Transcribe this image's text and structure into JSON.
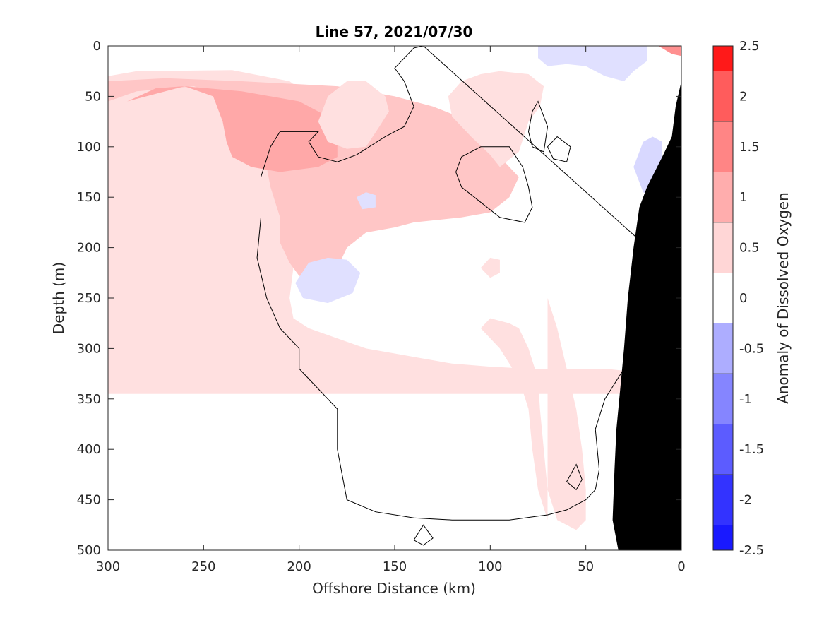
{
  "chart_data": {
    "type": "heatmap",
    "title": "Line 57, 2021/07/30",
    "xlabel": "Offshore Distance (km)",
    "ylabel": "Depth (m)",
    "xlim": [
      300,
      0
    ],
    "ylim": [
      0,
      500
    ],
    "x_reversed": true,
    "y_reversed": true,
    "x_ticks": [
      300,
      250,
      200,
      150,
      100,
      50,
      0
    ],
    "y_ticks": [
      0,
      50,
      100,
      150,
      200,
      250,
      300,
      350,
      400,
      450,
      500
    ],
    "colorbar": {
      "label": "Anomaly of Dissolved Oxygen",
      "range": [
        -2.5,
        2.5
      ],
      "ticks": [
        2.5,
        2,
        1.5,
        1,
        0.5,
        0,
        -0.5,
        -1,
        -1.5,
        -2,
        -2.5
      ],
      "levels": [
        {
          "from": -2.5,
          "to": -2.25,
          "color": "#1919ff"
        },
        {
          "from": -2.25,
          "to": -1.75,
          "color": "#3333ff"
        },
        {
          "from": -1.75,
          "to": -1.25,
          "color": "#5c5cff"
        },
        {
          "from": -1.25,
          "to": -0.75,
          "color": "#8585ff"
        },
        {
          "from": -0.75,
          "to": -0.25,
          "color": "#adadff"
        },
        {
          "from": -0.25,
          "to": 0.25,
          "color": "#ffffff"
        },
        {
          "from": 0.25,
          "to": 0.75,
          "color": "#ffd6d6"
        },
        {
          "from": 0.75,
          "to": 1.25,
          "color": "#ffadad"
        },
        {
          "from": 1.25,
          "to": 1.75,
          "color": "#ff8585"
        },
        {
          "from": 1.75,
          "to": 2.25,
          "color": "#ff5c5c"
        },
        {
          "from": 2.25,
          "to": 2.5,
          "color": "#ff1919"
        }
      ]
    },
    "grid": false,
    "regions": [
      {
        "name": "positive-anomaly-offshore",
        "level": 0.5,
        "color": "#ffe0e0",
        "points": [
          [
            300,
            30
          ],
          [
            285,
            25
          ],
          [
            235,
            24
          ],
          [
            205,
            35
          ],
          [
            198,
            45
          ],
          [
            205,
            58
          ],
          [
            202,
            80
          ],
          [
            195,
            100
          ],
          [
            185,
            120
          ],
          [
            180,
            140
          ],
          [
            185,
            170
          ],
          [
            195,
            200
          ],
          [
            203,
            220
          ],
          [
            205,
            250
          ],
          [
            203,
            270
          ],
          [
            195,
            280
          ],
          [
            180,
            290
          ],
          [
            165,
            300
          ],
          [
            150,
            305
          ],
          [
            135,
            310
          ],
          [
            120,
            315
          ],
          [
            100,
            318
          ],
          [
            80,
            320
          ],
          [
            60,
            320
          ],
          [
            40,
            320
          ],
          [
            20,
            324
          ],
          [
            5,
            330
          ],
          [
            0,
            345
          ],
          [
            0,
            345
          ],
          [
            300,
            345
          ]
        ]
      },
      {
        "name": "positive-anomaly-core",
        "level": 1.0,
        "color": "#ffc6c6",
        "points": [
          [
            300,
            55
          ],
          [
            285,
            45
          ],
          [
            255,
            40
          ],
          [
            235,
            55
          ],
          [
            225,
            85
          ],
          [
            218,
            110
          ],
          [
            215,
            140
          ],
          [
            210,
            170
          ],
          [
            210,
            195
          ],
          [
            205,
            215
          ],
          [
            200,
            228
          ],
          [
            190,
            230
          ],
          [
            180,
            220
          ],
          [
            175,
            200
          ],
          [
            165,
            185
          ],
          [
            150,
            180
          ],
          [
            140,
            175
          ],
          [
            125,
            172
          ],
          [
            115,
            170
          ],
          [
            100,
            165
          ],
          [
            90,
            150
          ],
          [
            85,
            130
          ],
          [
            95,
            110
          ],
          [
            100,
            95
          ],
          [
            110,
            75
          ],
          [
            130,
            60
          ],
          [
            150,
            50
          ],
          [
            180,
            40
          ],
          [
            230,
            35
          ],
          [
            270,
            32
          ],
          [
            300,
            35
          ]
        ]
      },
      {
        "name": "positive-anomaly-max",
        "level": 1.0,
        "color": "#ffa8a8",
        "points": [
          [
            290,
            55
          ],
          [
            275,
            42
          ],
          [
            260,
            40
          ],
          [
            245,
            50
          ],
          [
            240,
            75
          ],
          [
            238,
            95
          ],
          [
            235,
            110
          ],
          [
            225,
            120
          ],
          [
            210,
            125
          ],
          [
            190,
            120
          ],
          [
            180,
            110
          ],
          [
            180,
            90
          ],
          [
            185,
            70
          ],
          [
            200,
            55
          ],
          [
            230,
            45
          ],
          [
            260,
            40
          ]
        ]
      },
      {
        "name": "positive-anomaly-midshelf",
        "level": 0.5,
        "color": "#ffe0e0",
        "points": [
          [
            185,
            50
          ],
          [
            175,
            35
          ],
          [
            165,
            35
          ],
          [
            155,
            50
          ],
          [
            153,
            65
          ],
          [
            158,
            80
          ],
          [
            165,
            100
          ],
          [
            175,
            102
          ],
          [
            185,
            95
          ],
          [
            190,
            75
          ]
        ]
      },
      {
        "name": "positive-anomaly-inner",
        "level": 0.5,
        "color": "#ffe0e0",
        "points": [
          [
            95,
            25
          ],
          [
            80,
            28
          ],
          [
            72,
            40
          ],
          [
            74,
            60
          ],
          [
            80,
            75
          ],
          [
            85,
            105
          ],
          [
            95,
            120
          ],
          [
            100,
            108
          ],
          [
            110,
            90
          ],
          [
            120,
            70
          ],
          [
            122,
            50
          ],
          [
            115,
            35
          ],
          [
            105,
            28
          ]
        ]
      },
      {
        "name": "positive-anomaly-deep-column",
        "level": 0.5,
        "color": "#ffe0e0",
        "points": [
          [
            70,
            250
          ],
          [
            65,
            280
          ],
          [
            60,
            320
          ],
          [
            55,
            360
          ],
          [
            52,
            400
          ],
          [
            50,
            440
          ],
          [
            50,
            470
          ],
          [
            55,
            480
          ],
          [
            65,
            470
          ],
          [
            70,
            440
          ],
          [
            72,
            400
          ],
          [
            74,
            360
          ],
          [
            75,
            330
          ],
          [
            80,
            300
          ],
          [
            85,
            280
          ],
          [
            90,
            275
          ],
          [
            100,
            270
          ],
          [
            105,
            280
          ],
          [
            95,
            300
          ],
          [
            85,
            330
          ],
          [
            80,
            360
          ],
          [
            78,
            400
          ],
          [
            75,
            440
          ],
          [
            70,
            470
          ]
        ]
      },
      {
        "name": "positive-anomaly-small",
        "level": 0.5,
        "color": "#ffe0e0",
        "points": [
          [
            105,
            220
          ],
          [
            100,
            210
          ],
          [
            95,
            212
          ],
          [
            95,
            225
          ],
          [
            100,
            230
          ]
        ]
      },
      {
        "name": "negative-anomaly-west",
        "level": -0.5,
        "color": "#e0e0ff",
        "points": [
          [
            195,
            215
          ],
          [
            185,
            210
          ],
          [
            175,
            212
          ],
          [
            168,
            225
          ],
          [
            172,
            245
          ],
          [
            185,
            255
          ],
          [
            198,
            250
          ],
          [
            202,
            235
          ]
        ]
      },
      {
        "name": "negative-anomaly-small",
        "level": -0.5,
        "color": "#e0e0ff",
        "points": [
          [
            170,
            150
          ],
          [
            165,
            145
          ],
          [
            160,
            148
          ],
          [
            160,
            160
          ],
          [
            167,
            162
          ]
        ]
      },
      {
        "name": "negative-anomaly-surface",
        "level": -0.5,
        "color": "#e0e0ff",
        "points": [
          [
            75,
            0
          ],
          [
            75,
            12
          ],
          [
            70,
            20
          ],
          [
            60,
            18
          ],
          [
            50,
            20
          ],
          [
            40,
            30
          ],
          [
            30,
            35
          ],
          [
            25,
            25
          ],
          [
            18,
            15
          ],
          [
            18,
            0
          ]
        ]
      },
      {
        "name": "negative-anomaly-inner",
        "level": -0.5,
        "color": "#d8d8ff",
        "points": [
          [
            20,
            95
          ],
          [
            15,
            90
          ],
          [
            10,
            95
          ],
          [
            10,
            140
          ],
          [
            15,
            150
          ],
          [
            20,
            145
          ],
          [
            25,
            120
          ]
        ]
      },
      {
        "name": "positive-anomaly-corner",
        "level": 1.5,
        "color": "#ff9090",
        "points": [
          [
            12,
            0
          ],
          [
            5,
            0
          ],
          [
            0,
            0
          ],
          [
            0,
            10
          ],
          [
            5,
            8
          ]
        ]
      }
    ],
    "contours": [
      {
        "name": "zero-contour-main",
        "level": 0,
        "points": [
          [
            135,
            0
          ],
          [
            140,
            2
          ],
          [
            150,
            22
          ],
          [
            145,
            35
          ],
          [
            140,
            60
          ],
          [
            145,
            80
          ],
          [
            155,
            90
          ],
          [
            170,
            108
          ],
          [
            180,
            115
          ],
          [
            190,
            110
          ],
          [
            195,
            95
          ],
          [
            190,
            85
          ],
          [
            200,
            85
          ],
          [
            210,
            85
          ],
          [
            215,
            100
          ],
          [
            220,
            130
          ],
          [
            220,
            170
          ],
          [
            222,
            210
          ],
          [
            217,
            250
          ],
          [
            210,
            280
          ],
          [
            200,
            300
          ],
          [
            200,
            320
          ],
          [
            180,
            360
          ],
          [
            180,
            400
          ],
          [
            175,
            450
          ],
          [
            160,
            462
          ],
          [
            140,
            468
          ],
          [
            120,
            470
          ],
          [
            110,
            470
          ],
          [
            90,
            470
          ],
          [
            70,
            465
          ],
          [
            60,
            460
          ],
          [
            50,
            450
          ],
          [
            45,
            440
          ],
          [
            43,
            420
          ],
          [
            45,
            380
          ],
          [
            40,
            350
          ],
          [
            30,
            320
          ],
          [
            28,
            300
          ],
          [
            20,
            280
          ],
          [
            10,
            260
          ],
          [
            5,
            250
          ],
          [
            3,
            240
          ],
          [
            0,
            230
          ]
        ]
      },
      {
        "name": "zero-contour-patch-1",
        "level": 0,
        "points": [
          [
            90,
            100
          ],
          [
            83,
            120
          ],
          [
            80,
            140
          ],
          [
            78,
            160
          ],
          [
            82,
            175
          ],
          [
            95,
            170
          ],
          [
            105,
            155
          ],
          [
            115,
            140
          ],
          [
            118,
            125
          ],
          [
            115,
            110
          ],
          [
            105,
            100
          ]
        ]
      },
      {
        "name": "zero-contour-patch-2",
        "level": 0,
        "points": [
          [
            75,
            55
          ],
          [
            70,
            80
          ],
          [
            72,
            105
          ],
          [
            78,
            100
          ],
          [
            80,
            85
          ],
          [
            78,
            65
          ]
        ]
      },
      {
        "name": "zero-contour-patch-3",
        "level": 0,
        "points": [
          [
            65,
            90
          ],
          [
            58,
            100
          ],
          [
            60,
            115
          ],
          [
            67,
            112
          ],
          [
            70,
            100
          ]
        ]
      },
      {
        "name": "zero-contour-patch-4",
        "level": 0,
        "points": [
          [
            55,
            415
          ],
          [
            52,
            430
          ],
          [
            55,
            440
          ],
          [
            60,
            432
          ]
        ]
      },
      {
        "name": "zero-contour-patch-5",
        "level": 0,
        "points": [
          [
            135,
            475
          ],
          [
            130,
            488
          ],
          [
            135,
            495
          ],
          [
            140,
            490
          ]
        ]
      }
    ],
    "land_mask": {
      "name": "seafloor",
      "color": "#000000",
      "points": [
        [
          0,
          35
        ],
        [
          3,
          60
        ],
        [
          5,
          90
        ],
        [
          10,
          110
        ],
        [
          18,
          140
        ],
        [
          22,
          160
        ],
        [
          25,
          200
        ],
        [
          28,
          250
        ],
        [
          30,
          300
        ],
        [
          32,
          340
        ],
        [
          34,
          380
        ],
        [
          35,
          420
        ],
        [
          36,
          470
        ],
        [
          33,
          500
        ],
        [
          0,
          500
        ]
      ]
    }
  }
}
